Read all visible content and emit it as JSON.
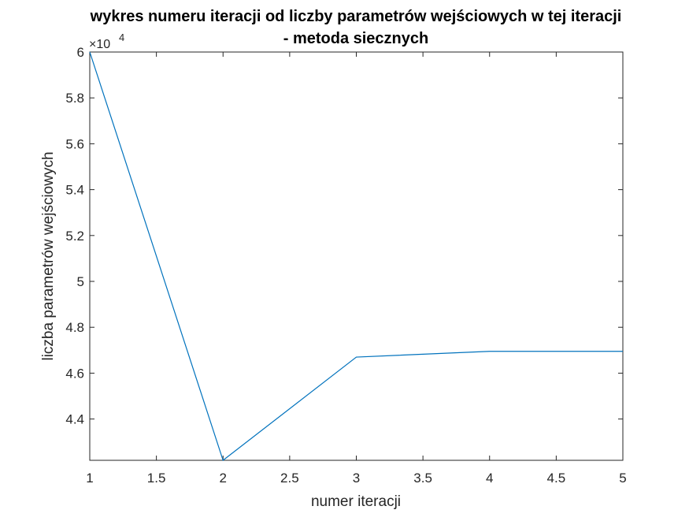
{
  "chart_data": {
    "type": "line",
    "title": [
      "wykres numeru iteracji od liczby parametrów wejściowych w tej iteracji",
      "- metoda siecznych"
    ],
    "xlabel": "numer iteracji",
    "ylabel": "liczba parametrów wejściowych",
    "y_exponent_label": "×10",
    "y_exponent_power": "4",
    "x": [
      1,
      2,
      3,
      4,
      5
    ],
    "series": [
      {
        "values": [
          60000,
          42200,
          46700,
          46950,
          46950
        ],
        "color": "#0072BD"
      }
    ],
    "xlim": [
      1,
      5
    ],
    "ylim": [
      42200,
      60000
    ],
    "xticks": [
      1,
      1.5,
      2,
      2.5,
      3,
      3.5,
      4,
      4.5,
      5
    ],
    "xtick_labels": [
      "1",
      "1.5",
      "2",
      "2.5",
      "3",
      "3.5",
      "4",
      "4.5",
      "5"
    ],
    "yticks": [
      44000,
      46000,
      48000,
      50000,
      52000,
      54000,
      56000,
      58000,
      60000
    ],
    "ytick_labels": [
      "4.4",
      "4.6",
      "4.8",
      "5",
      "5.2",
      "5.4",
      "5.6",
      "5.8",
      "6"
    ],
    "grid": false,
    "box": true
  }
}
